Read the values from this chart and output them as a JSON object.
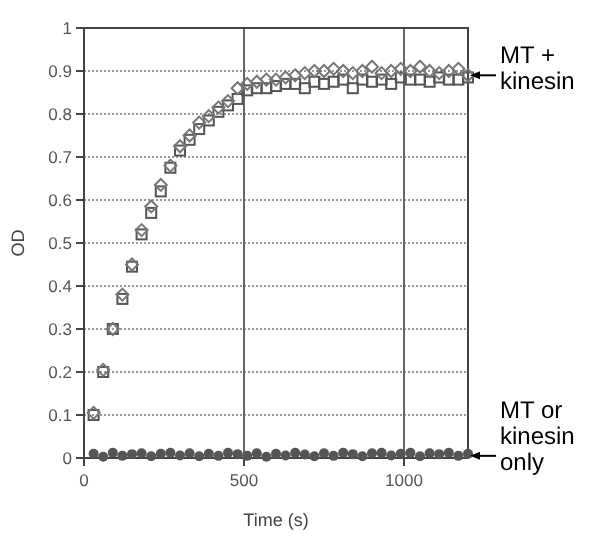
{
  "chart_data": {
    "type": "scatter",
    "xlabel": "Time (s)",
    "ylabel": "OD",
    "x": [
      30,
      60,
      90,
      120,
      150,
      180,
      210,
      240,
      270,
      300,
      330,
      360,
      390,
      420,
      450,
      480,
      510,
      540,
      570,
      600,
      630,
      660,
      690,
      720,
      750,
      780,
      810,
      840,
      870,
      900,
      930,
      960,
      990,
      1020,
      1050,
      1080,
      1110,
      1140,
      1170,
      1200
    ],
    "series": [
      {
        "color": "#555555",
        "marker": "square",
        "values": [
          0.1,
          0.2,
          0.3,
          0.37,
          0.445,
          0.52,
          0.57,
          0.62,
          0.675,
          0.715,
          0.74,
          0.765,
          0.785,
          0.805,
          0.82,
          0.835,
          0.855,
          0.86,
          0.86,
          0.865,
          0.87,
          0.87,
          0.86,
          0.875,
          0.87,
          0.875,
          0.88,
          0.86,
          0.88,
          0.875,
          0.88,
          0.87,
          0.885,
          0.88,
          0.88,
          0.875,
          0.885,
          0.88,
          0.88,
          0.885
        ]
      },
      {
        "color": "#777777",
        "marker": "diamond",
        "values": [
          0.105,
          0.205,
          0.3,
          0.38,
          0.45,
          0.53,
          0.585,
          0.635,
          0.68,
          0.725,
          0.75,
          0.78,
          0.795,
          0.815,
          0.83,
          0.86,
          0.87,
          0.875,
          0.88,
          0.88,
          0.885,
          0.89,
          0.895,
          0.9,
          0.9,
          0.905,
          0.9,
          0.895,
          0.9,
          0.91,
          0.895,
          0.9,
          0.905,
          0.9,
          0.91,
          0.9,
          0.895,
          0.9,
          0.905,
          0.89
        ]
      },
      {
        "color": "#555555",
        "marker": "circle",
        "values": [
          0.01,
          0.003,
          0.012,
          0.005,
          0.009,
          0.011,
          0.004,
          0.01,
          0.012,
          0.006,
          0.011,
          0.004,
          0.01,
          0.005,
          0.012,
          0.009,
          0.005,
          0.011,
          0.003,
          0.01,
          0.006,
          0.012,
          0.008,
          0.004,
          0.011,
          0.005,
          0.012,
          0.009,
          0.004,
          0.011,
          0.012,
          0.006,
          0.01,
          0.012,
          0.004,
          0.011,
          0.009,
          0.012,
          0.005,
          0.01
        ]
      }
    ],
    "xlim": [
      0,
      1200
    ],
    "xticks": [
      0,
      500,
      1000
    ],
    "ylim": [
      0,
      1
    ],
    "yticks": [
      0,
      0.1,
      0.2,
      0.3,
      0.4,
      0.5,
      0.6,
      0.7,
      0.8,
      0.9,
      1
    ],
    "grid": true,
    "annotations": [
      {
        "text": "MT + kinesin",
        "x": 1200,
        "y": 0.89
      },
      {
        "text": "MT or kinesin only",
        "x": 1200,
        "y": 0.005
      }
    ]
  }
}
